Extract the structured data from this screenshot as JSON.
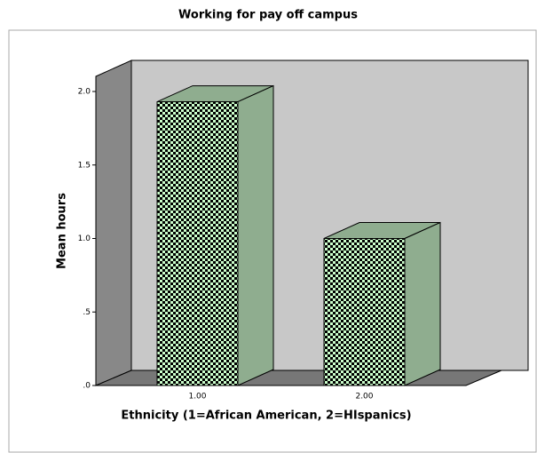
{
  "chart_data": {
    "type": "bar3d",
    "title": "Working for pay off campus",
    "x_label": "Ethnicity (1=African American, 2=HIspanics)",
    "y_label": "Mean hours",
    "categories": [
      "1.00",
      "2.00"
    ],
    "values": [
      1.93,
      1.0
    ],
    "color": "#8fad8f",
    "ylim": [
      0,
      2.0
    ],
    "yticks": [
      {
        "value": 0,
        "label": ".0"
      },
      {
        "value": 0.5,
        "label": ".5"
      },
      {
        "value": 1.0,
        "label": "1.0"
      },
      {
        "value": 1.5,
        "label": "1.5"
      },
      {
        "value": 2.0,
        "label": "2.0"
      }
    ]
  }
}
